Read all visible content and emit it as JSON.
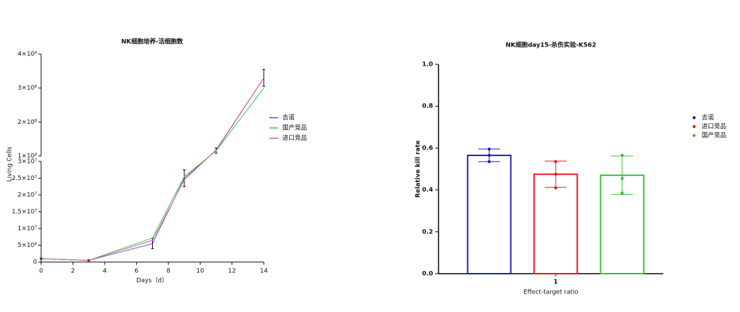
{
  "chart_data": [
    {
      "type": "line",
      "title": "NK细胞培养-活细胞数",
      "x_label": "Days（d）",
      "y_label": "Living Cells",
      "x": [
        0,
        3,
        7,
        9,
        11,
        14
      ],
      "xlim": [
        0,
        14
      ],
      "xticks": [
        0,
        2,
        4,
        6,
        8,
        10,
        12,
        14
      ],
      "y_segments": [
        {
          "ylim": [
            0,
            30000000
          ],
          "yticks": [
            0,
            {
              "value": 5000000,
              "label": "5×10⁶"
            },
            {
              "value": 10000000,
              "label": "1×10⁷"
            },
            {
              "value": 15000000,
              "label": "1.5×10⁷"
            },
            {
              "value": 20000000,
              "label": "2×10⁷"
            },
            {
              "value": 25000000,
              "label": "2.5×10⁷"
            },
            {
              "value": 30000000,
              "label": "3×10⁷"
            }
          ]
        },
        {
          "ylim": [
            100000000,
            400000000
          ],
          "yticks": [
            {
              "value": 100000000,
              "label": "1×10⁸"
            },
            {
              "value": 200000000,
              "label": "2×10⁸"
            },
            {
              "value": 300000000,
              "label": "3×10⁸"
            },
            {
              "value": 400000000,
              "label": "4×10⁸"
            }
          ]
        }
      ],
      "series": [
        {
          "name": "吉诺",
          "color": "#5b4fe0",
          "values": [
            1000000,
            500000,
            5500000,
            25000000,
            116000000,
            330000000
          ],
          "errors": [
            200000,
            200000,
            1500000,
            2500000,
            8000000,
            25000000
          ]
        },
        {
          "name": "国产竞品",
          "color": "#2ecc40",
          "values": [
            1000000,
            500000,
            7200000,
            25500000,
            115000000,
            300000000
          ]
        },
        {
          "name": "进口竞品",
          "color": "#e8508a",
          "values": [
            1000000,
            500000,
            6500000,
            24500000,
            118000000,
            330000000
          ]
        }
      ]
    },
    {
      "type": "bar",
      "title": "NK细胞day15-杀伤实验-K562",
      "x_label": "Effect-target ratio",
      "y_label": "Relative kill rate",
      "categories": [
        "1"
      ],
      "ylim": [
        0,
        1
      ],
      "yticks": [
        {
          "value": 0,
          "label": "0.0"
        },
        {
          "value": 0.2,
          "label": "0.2"
        },
        {
          "value": 0.4,
          "label": "0.4"
        },
        {
          "value": 0.6,
          "label": "0.6"
        },
        {
          "value": 0.8,
          "label": "0.8"
        },
        {
          "value": 1,
          "label": "1.0"
        }
      ],
      "series": [
        {
          "name": "吉诺",
          "color": "#1a1ab8",
          "values": [
            0.565
          ],
          "errors": [
            0.03
          ],
          "points": [
            [
              0.595,
              0.565,
              0.535
            ]
          ]
        },
        {
          "name": "进口竞品",
          "color": "#e8121a",
          "values": [
            0.475
          ],
          "errors": [
            0.063
          ],
          "points": [
            [
              0.535,
              0.475,
              0.41
            ]
          ]
        },
        {
          "name": "国产竞品",
          "color": "#2ec02e",
          "values": [
            0.47
          ],
          "errors": [
            0.092
          ],
          "points": [
            [
              0.565,
              0.455,
              0.385
            ]
          ]
        }
      ]
    }
  ]
}
